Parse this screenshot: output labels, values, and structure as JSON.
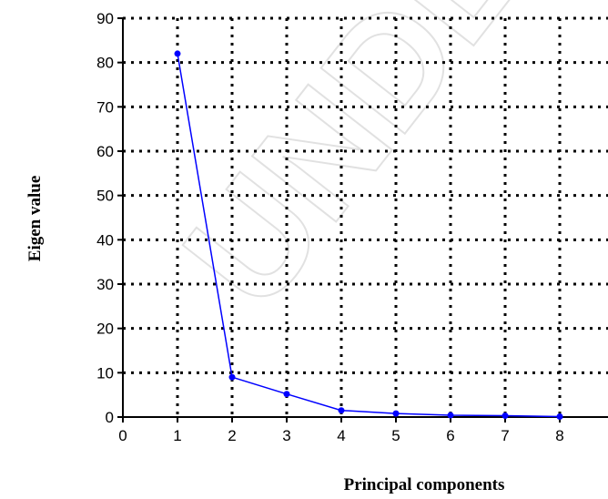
{
  "chart_data": {
    "type": "line",
    "title": "",
    "xlabel": "Principal components",
    "ylabel": "Eigen value",
    "x_ticks": [
      0,
      1,
      2,
      3,
      4,
      5,
      6,
      7,
      8
    ],
    "y_ticks": [
      0,
      10,
      20,
      30,
      40,
      50,
      60,
      70,
      80,
      90
    ],
    "xlim": [
      0,
      9
    ],
    "ylim": [
      0,
      90
    ],
    "grid": true,
    "legend": "none",
    "series": [
      {
        "x": [
          1,
          2,
          3,
          4,
          5,
          6,
          7,
          8
        ],
        "values": [
          82,
          9,
          5.2,
          1.5,
          0.8,
          0.4,
          0.3,
          0.1
        ],
        "color": "#0000ff"
      }
    ]
  },
  "watermark": "UNDER",
  "colors": {
    "line": "#0000ff",
    "grid": "#000000",
    "watermark": "#c9c9c9"
  }
}
